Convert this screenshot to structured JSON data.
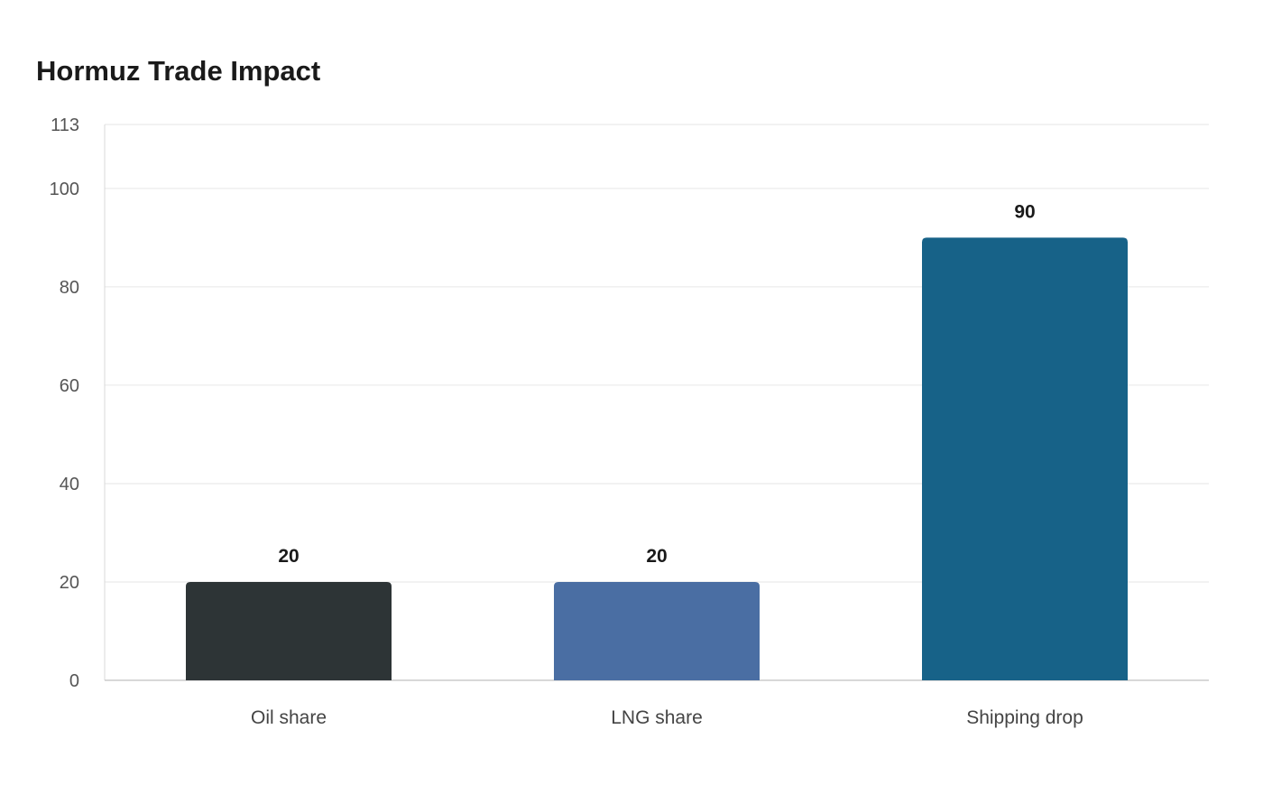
{
  "chart_data": {
    "type": "bar",
    "title": "Hormuz Trade Impact",
    "xlabel": "",
    "ylabel": "",
    "categories": [
      "Oil share",
      "LNG share",
      "Shipping drop"
    ],
    "values": [
      20,
      20,
      90
    ],
    "value_labels": [
      "20",
      "20",
      "90"
    ],
    "bar_colors": [
      "#2d3436",
      "#4a6ea3",
      "#176288"
    ],
    "ylim": [
      0,
      113
    ],
    "yticks": [
      0,
      20,
      40,
      60,
      80,
      100,
      113
    ],
    "ytick_labels": [
      "0",
      "20",
      "40",
      "60",
      "80",
      "100",
      "113"
    ],
    "grid": true,
    "legend": "none"
  }
}
